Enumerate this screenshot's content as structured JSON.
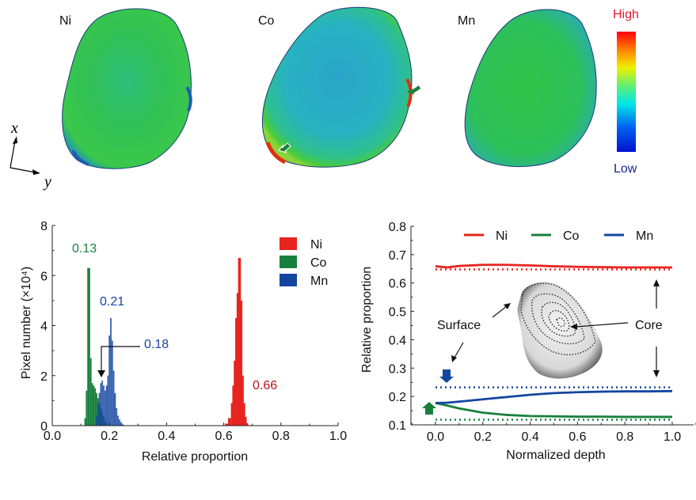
{
  "maps": {
    "panels": [
      {
        "label": "Ni"
      },
      {
        "label": "Co"
      },
      {
        "label": "Mn"
      }
    ],
    "axes": {
      "x_label": "x",
      "y_label": "y"
    },
    "colorbar": {
      "high_label": "High",
      "low_label": "Low",
      "high_color": "#e8192c",
      "low_color": "#1a1f8f"
    }
  },
  "colors": {
    "Ni": "#e8241e",
    "Co": "#18803c",
    "Mn": "#1446a0"
  },
  "chart_data": [
    {
      "type": "bar",
      "subtype": "histogram",
      "title": "",
      "xlabel": "Relative proportion",
      "ylabel": "Pixel number (×10⁴)",
      "xlim": [
        0.0,
        1.0
      ],
      "ylim": [
        0,
        8
      ],
      "xticks": [
        "0.0",
        "0.2",
        "0.4",
        "0.6",
        "0.8",
        "1.0"
      ],
      "yticks": [
        "0",
        "2",
        "4",
        "6",
        "8"
      ],
      "legend": {
        "placement": "top-right",
        "entries": [
          "Ni",
          "Co",
          "Mn"
        ]
      },
      "series": [
        {
          "name": "Co",
          "x": [
            0.115,
            0.12,
            0.125,
            0.13,
            0.135,
            0.14,
            0.145,
            0.15,
            0.155,
            0.16,
            0.165,
            0.17,
            0.175,
            0.18,
            0.185,
            0.19
          ],
          "values": [
            0.3,
            1.4,
            6.3,
            6.3,
            2.7,
            1.7,
            1.6,
            1.5,
            1.3,
            1.1,
            0.9,
            0.7,
            0.5,
            0.35,
            0.2,
            0.1
          ]
        },
        {
          "name": "Mn",
          "x": [
            0.155,
            0.16,
            0.165,
            0.17,
            0.175,
            0.18,
            0.185,
            0.19,
            0.195,
            0.2,
            0.205,
            0.21,
            0.215,
            0.22,
            0.225,
            0.23,
            0.235,
            0.24,
            0.245,
            0.25
          ],
          "values": [
            0.4,
            0.9,
            1.3,
            1.7,
            1.8,
            1.6,
            1.4,
            1.6,
            2.0,
            3.6,
            4.3,
            3.4,
            2.2,
            1.3,
            0.7,
            0.4,
            0.25,
            0.15,
            0.08,
            0.03
          ]
        },
        {
          "name": "Ni",
          "x": [
            0.6,
            0.61,
            0.62,
            0.63,
            0.635,
            0.64,
            0.645,
            0.65,
            0.655,
            0.66,
            0.665,
            0.67,
            0.675,
            0.68,
            0.69
          ],
          "values": [
            0.02,
            0.08,
            0.3,
            0.9,
            1.6,
            2.6,
            4.3,
            5.3,
            6.7,
            5.0,
            2.0,
            0.9,
            0.35,
            0.1,
            0.02
          ]
        }
      ],
      "annotations": [
        {
          "text": "0.13",
          "series": "Co"
        },
        {
          "text": "0.21",
          "series": "Mn"
        },
        {
          "text": "0.18",
          "series": "Mn"
        },
        {
          "text": "0.66",
          "series": "Ni"
        }
      ]
    },
    {
      "type": "line",
      "title": "",
      "xlabel": "Normalized depth",
      "ylabel": "Relative proportion",
      "xlim": [
        -0.1,
        1.1
      ],
      "ylim": [
        0.1,
        0.8
      ],
      "xticks": [
        "0.0",
        "0.2",
        "0.4",
        "0.6",
        "0.8",
        "1.0"
      ],
      "yticks": [
        "0.1",
        "0.2",
        "0.3",
        "0.4",
        "0.5",
        "0.6",
        "0.7",
        "0.8"
      ],
      "legend": {
        "placement": "top",
        "entries": [
          "Ni",
          "Co",
          "Mn"
        ]
      },
      "x": [
        0.0,
        0.05,
        0.1,
        0.2,
        0.3,
        0.4,
        0.5,
        0.6,
        0.7,
        0.8,
        0.9,
        1.0
      ],
      "series": [
        {
          "name": "Ni",
          "values": [
            0.659,
            0.655,
            0.66,
            0.664,
            0.664,
            0.662,
            0.659,
            0.657,
            0.656,
            0.655,
            0.655,
            0.655
          ],
          "reference": 0.648
        },
        {
          "name": "Co",
          "values": [
            0.177,
            0.168,
            0.158,
            0.143,
            0.135,
            0.131,
            0.13,
            0.129,
            0.129,
            0.128,
            0.128,
            0.128
          ],
          "reference": 0.118
        },
        {
          "name": "Mn",
          "values": [
            0.177,
            0.178,
            0.182,
            0.19,
            0.198,
            0.206,
            0.212,
            0.215,
            0.217,
            0.218,
            0.218,
            0.219
          ],
          "reference": 0.232
        }
      ],
      "annotations": [
        {
          "text": "Surface"
        },
        {
          "text": "Core"
        }
      ]
    }
  ]
}
